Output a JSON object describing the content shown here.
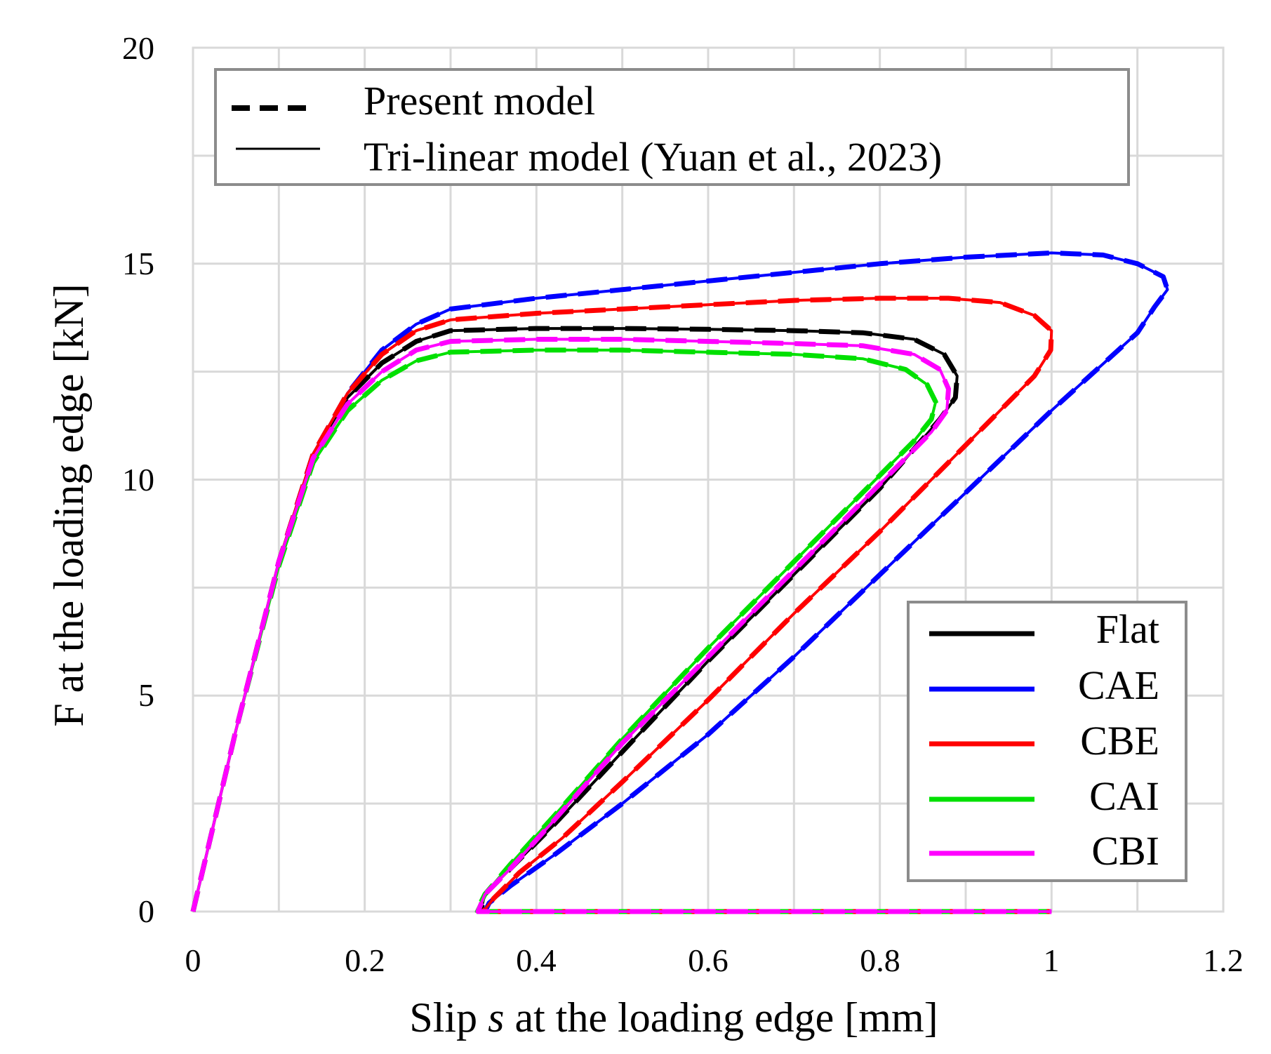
{
  "chart_data": {
    "type": "line",
    "xlabel_parts": [
      "Slip ",
      "s",
      " at the loading edge [mm]"
    ],
    "ylabel": "F at the loading edge [kN]",
    "xlim": [
      0,
      1.2
    ],
    "ylim": [
      0,
      20
    ],
    "x_ticks": [
      "0",
      "0.2",
      "0.4",
      "0.6",
      "0.8",
      "1",
      "1.2"
    ],
    "y_ticks": [
      "0",
      "5",
      "10",
      "15",
      "20"
    ],
    "grid": true,
    "model_legend": {
      "position": "top",
      "entries": [
        {
          "label": "Present model",
          "style": "dashed"
        },
        {
          "label": "Tri-linear model  (Yuan et al., 2023)",
          "style": "solid"
        }
      ]
    },
    "series_legend": {
      "position": "bottom-right",
      "entries": [
        {
          "label": "Flat",
          "color": "#000000"
        },
        {
          "label": "CAE",
          "color": "#0000ff"
        },
        {
          "label": "CBE",
          "color": "#ff0000"
        },
        {
          "label": "CAI",
          "color": "#00e000"
        },
        {
          "label": "CBI",
          "color": "#ff00ff"
        }
      ]
    },
    "series": [
      {
        "name": "Flat",
        "color": "#000000",
        "x": [
          0,
          0.05,
          0.1,
          0.14,
          0.18,
          0.22,
          0.26,
          0.3,
          0.4,
          0.5,
          0.6,
          0.7,
          0.78,
          0.84,
          0.875,
          0.89,
          0.888,
          0.87,
          0.8,
          0.7,
          0.6,
          0.5,
          0.42,
          0.37,
          0.34,
          0.335,
          1.0
        ],
        "y": [
          0,
          4.2,
          8.1,
          10.6,
          11.9,
          12.7,
          13.2,
          13.45,
          13.5,
          13.5,
          13.48,
          13.45,
          13.4,
          13.25,
          12.9,
          12.4,
          11.9,
          11.4,
          9.8,
          7.8,
          5.8,
          3.7,
          2.0,
          1.0,
          0.4,
          0,
          0
        ]
      },
      {
        "name": "CAE",
        "color": "#0000ff",
        "x": [
          0,
          0.05,
          0.1,
          0.14,
          0.18,
          0.22,
          0.26,
          0.3,
          0.4,
          0.5,
          0.6,
          0.7,
          0.8,
          0.9,
          1.0,
          1.06,
          1.1,
          1.13,
          1.135,
          1.12,
          1.1,
          1.0,
          0.9,
          0.8,
          0.7,
          0.6,
          0.5,
          0.42,
          0.37,
          0.345,
          0.34,
          1.0
        ],
        "y": [
          0,
          4.2,
          8.1,
          10.6,
          12.0,
          13.0,
          13.6,
          13.95,
          14.2,
          14.4,
          14.6,
          14.8,
          15.0,
          15.15,
          15.25,
          15.2,
          15.0,
          14.7,
          14.4,
          14.0,
          13.4,
          11.6,
          9.7,
          7.8,
          5.9,
          4.1,
          2.5,
          1.3,
          0.6,
          0.2,
          0,
          0
        ]
      },
      {
        "name": "CBE",
        "color": "#ff0000",
        "x": [
          0,
          0.05,
          0.1,
          0.14,
          0.18,
          0.22,
          0.26,
          0.3,
          0.4,
          0.5,
          0.6,
          0.7,
          0.8,
          0.88,
          0.94,
          0.98,
          1.0,
          0.999,
          0.98,
          0.9,
          0.8,
          0.7,
          0.6,
          0.5,
          0.43,
          0.38,
          0.35,
          0.338,
          1.0
        ],
        "y": [
          0,
          4.2,
          8.1,
          10.6,
          12.0,
          12.9,
          13.45,
          13.7,
          13.85,
          13.95,
          14.05,
          14.15,
          14.2,
          14.2,
          14.1,
          13.8,
          13.45,
          13.0,
          12.4,
          10.8,
          8.8,
          6.9,
          4.9,
          3.0,
          1.7,
          0.9,
          0.3,
          0,
          0
        ]
      },
      {
        "name": "CAI",
        "color": "#00e000",
        "x": [
          0,
          0.05,
          0.1,
          0.14,
          0.18,
          0.22,
          0.26,
          0.3,
          0.4,
          0.5,
          0.6,
          0.7,
          0.78,
          0.83,
          0.855,
          0.865,
          0.86,
          0.84,
          0.8,
          0.7,
          0.6,
          0.5,
          0.42,
          0.37,
          0.34,
          0.33,
          1.0
        ],
        "y": [
          0,
          4.2,
          8.0,
          10.4,
          11.6,
          12.3,
          12.75,
          12.95,
          13.0,
          13.0,
          12.95,
          12.9,
          12.8,
          12.55,
          12.2,
          11.8,
          11.4,
          10.9,
          10.1,
          8.1,
          6.1,
          4.0,
          2.2,
          1.1,
          0.4,
          0,
          0
        ]
      },
      {
        "name": "CBI",
        "color": "#ff00ff",
        "x": [
          0,
          0.05,
          0.1,
          0.14,
          0.18,
          0.22,
          0.26,
          0.3,
          0.4,
          0.5,
          0.6,
          0.7,
          0.78,
          0.84,
          0.87,
          0.88,
          0.878,
          0.86,
          0.8,
          0.7,
          0.6,
          0.5,
          0.42,
          0.37,
          0.34,
          0.332,
          1.0
        ],
        "y": [
          0,
          4.2,
          8.1,
          10.5,
          11.75,
          12.5,
          13.0,
          13.2,
          13.25,
          13.25,
          13.2,
          13.15,
          13.1,
          12.9,
          12.55,
          12.1,
          11.6,
          11.1,
          9.9,
          7.9,
          5.9,
          3.9,
          2.1,
          1.0,
          0.4,
          0,
          0
        ]
      }
    ]
  }
}
